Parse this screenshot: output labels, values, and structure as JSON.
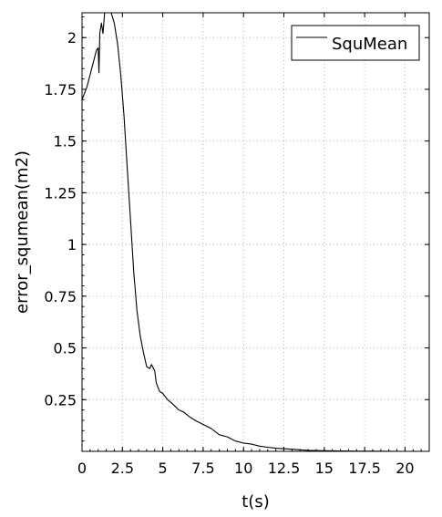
{
  "chart_data": {
    "type": "line",
    "xlabel": "t(s)",
    "ylabel": "error_squmean(m2)",
    "xlim": [
      0,
      21.5
    ],
    "ylim": [
      0,
      2.12
    ],
    "x_ticks": [
      0,
      2.5,
      5,
      7.5,
      10,
      12.5,
      15,
      17.5,
      20
    ],
    "x_tick_labels": [
      "0",
      "2.5",
      "5",
      "7.5",
      "10",
      "12.5",
      "15",
      "17.5",
      "20"
    ],
    "y_ticks": [
      0.25,
      0.5,
      0.75,
      1,
      1.25,
      1.5,
      1.75,
      2
    ],
    "y_tick_labels": [
      "0.25",
      "0.5",
      "0.75",
      "1",
      "1.25",
      "1.5",
      "1.75",
      "2"
    ],
    "grid": true,
    "legend_position": "top-right",
    "series": [
      {
        "name": "SquMean",
        "color": "#000000",
        "x": [
          0,
          0.3,
          0.6,
          0.9,
          1.0,
          1.05,
          1.1,
          1.2,
          1.3,
          1.4,
          1.5,
          1.6,
          1.8,
          2.0,
          2.2,
          2.4,
          2.6,
          2.8,
          3.0,
          3.2,
          3.4,
          3.6,
          3.8,
          4.0,
          4.2,
          4.3,
          4.5,
          4.6,
          4.8,
          5.0,
          5.3,
          5.6,
          6.0,
          6.3,
          6.6,
          7.0,
          7.5,
          8.0,
          8.5,
          9.0,
          9.5,
          10.0,
          10.5,
          11.0,
          11.5,
          12.0,
          13.0,
          14.0,
          15.0,
          16.0,
          17.0,
          18.0,
          19.0,
          20.0
        ],
        "y": [
          1.7,
          1.76,
          1.85,
          1.94,
          1.95,
          1.83,
          2.02,
          2.07,
          2.02,
          2.12,
          2.12,
          2.13,
          2.12,
          2.07,
          1.97,
          1.82,
          1.62,
          1.37,
          1.12,
          0.87,
          0.68,
          0.56,
          0.48,
          0.41,
          0.4,
          0.42,
          0.39,
          0.33,
          0.29,
          0.28,
          0.25,
          0.23,
          0.2,
          0.19,
          0.17,
          0.15,
          0.13,
          0.11,
          0.08,
          0.07,
          0.05,
          0.04,
          0.035,
          0.025,
          0.02,
          0.015,
          0.01,
          0.005,
          0.003,
          0.002,
          0.001,
          0.001,
          0.0005,
          0.0002
        ]
      }
    ]
  }
}
